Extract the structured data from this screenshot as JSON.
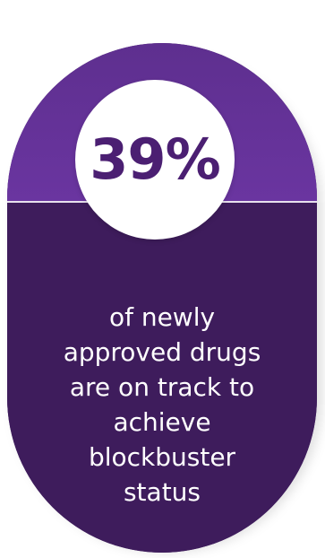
{
  "stat": {
    "value": "39%",
    "caption_lines": [
      "of newly",
      "approved drugs",
      "are on track to",
      "achieve",
      "blockbuster",
      "status"
    ]
  },
  "colors": {
    "top_purple": "#6a35a0",
    "bottom_purple": "#3e1c5c",
    "stat_text": "#4b1f72",
    "caption_text": "#ffffff"
  }
}
